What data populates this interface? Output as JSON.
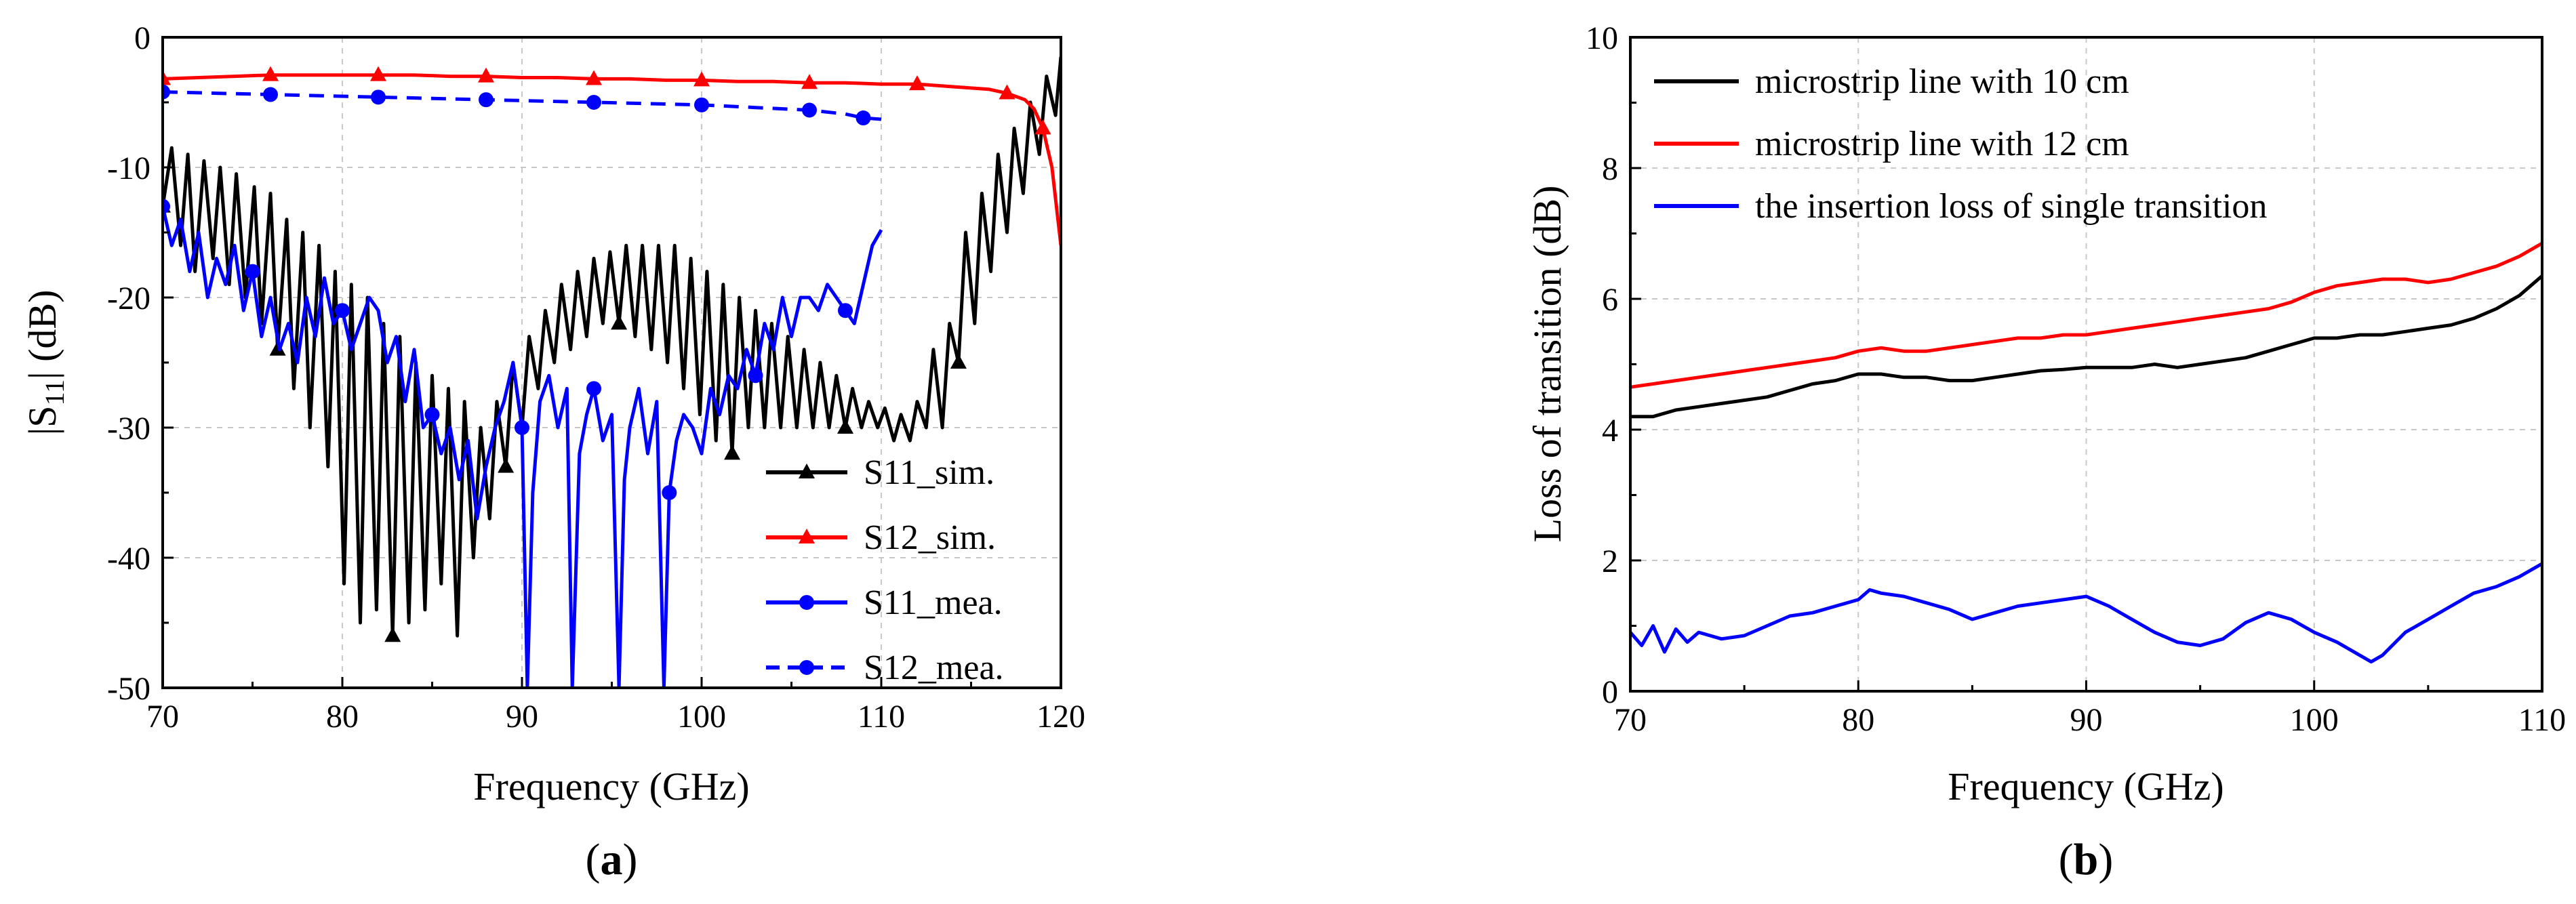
{
  "chart_data": [
    {
      "type": "line",
      "panel_label": "a",
      "xlabel": "Frequency (GHz)",
      "ylabel": "|S11| (dB)",
      "ylabel_main": "|S",
      "ylabel_sub": "11",
      "ylabel_rest": "| (dB)",
      "xlim": [
        70,
        120
      ],
      "ylim": [
        -50,
        0
      ],
      "xticks": [
        70,
        80,
        90,
        100,
        110,
        120
      ],
      "yticks": [
        0,
        -10,
        -20,
        -30,
        -40,
        -50
      ],
      "xtick_labels": [
        "70",
        "80",
        "90",
        "100",
        "110",
        "120"
      ],
      "ytick_labels": [
        "0",
        "-10",
        "-20",
        "-30",
        "-40",
        "-50"
      ],
      "grid": true,
      "legend_position": "bottom-right",
      "series": [
        {
          "name": "S11_sim.",
          "color": "#000000",
          "dash": "solid",
          "marker": "triangle",
          "x": [
            70,
            70.5,
            71,
            71.4,
            71.8,
            72.3,
            72.8,
            73.2,
            73.7,
            74.1,
            74.6,
            75.1,
            75.5,
            76.0,
            76.4,
            76.9,
            77.3,
            77.8,
            78.2,
            78.7,
            79.2,
            79.6,
            80.1,
            80.5,
            81.0,
            81.4,
            81.9,
            82.3,
            82.8,
            83.2,
            83.7,
            84.1,
            84.6,
            85.0,
            85.5,
            85.9,
            86.4,
            86.8,
            87.3,
            87.7,
            88.2,
            88.6,
            89.1,
            89.5,
            90.0,
            90.4,
            90.9,
            91.3,
            91.8,
            92.2,
            92.7,
            93.1,
            93.6,
            94.0,
            94.5,
            94.9,
            95.4,
            95.8,
            96.3,
            96.7,
            97.2,
            97.6,
            98.1,
            98.5,
            99.0,
            99.4,
            99.9,
            100.3,
            100.8,
            101.2,
            101.7,
            102.1,
            102.6,
            103.0,
            103.5,
            103.9,
            104.4,
            104.8,
            105.3,
            105.7,
            106.2,
            106.6,
            107.1,
            107.5,
            108.0,
            108.4,
            108.9,
            109.3,
            109.8,
            110.2,
            110.7,
            111.1,
            111.6,
            112.0,
            112.5,
            112.9,
            113.4,
            113.8,
            114.3,
            114.7,
            115.2,
            115.6,
            116.1,
            116.5,
            117.0,
            117.4,
            117.9,
            118.3,
            118.8,
            119.2,
            119.7,
            120
          ],
          "y": [
            -13,
            -8.5,
            -16,
            -9,
            -18,
            -9.5,
            -17,
            -10,
            -19,
            -10.5,
            -20,
            -11.5,
            -22,
            -12,
            -24,
            -14,
            -27,
            -15,
            -30,
            -16,
            -33,
            -18,
            -42,
            -19,
            -45,
            -20,
            -44,
            -22,
            -46,
            -23,
            -45,
            -25,
            -44,
            -26,
            -42,
            -27,
            -46,
            -28,
            -40,
            -30,
            -37,
            -28,
            -33,
            -25,
            -30,
            -23,
            -27,
            -21,
            -25,
            -19,
            -24,
            -18,
            -23,
            -17,
            -22,
            -16.5,
            -22,
            -16,
            -23,
            -16,
            -24,
            -16,
            -25,
            -16,
            -27,
            -17,
            -29,
            -18,
            -31,
            -19,
            -32,
            -20,
            -30,
            -21,
            -30,
            -22,
            -30,
            -23,
            -30,
            -24,
            -30,
            -25,
            -30,
            -26,
            -30,
            -27,
            -30,
            -28,
            -30,
            -28.5,
            -31,
            -29,
            -31,
            -28,
            -30,
            -24,
            -30,
            -22,
            -25,
            -15,
            -22,
            -12,
            -18,
            -9,
            -15,
            -7,
            -12,
            -5,
            -9,
            -3,
            -6,
            -1.5
          ]
        },
        {
          "name": "S12_sim.",
          "color": "#ff0000",
          "dash": "solid",
          "marker": "triangle",
          "x": [
            70,
            72,
            74,
            76,
            78,
            80,
            82,
            84,
            86,
            88,
            90,
            92,
            94,
            96,
            98,
            100,
            102,
            104,
            106,
            108,
            110,
            112,
            114,
            116,
            117,
            118,
            118.5,
            119,
            119.5,
            120
          ],
          "y": [
            -3.2,
            -3.1,
            -3.0,
            -2.9,
            -2.9,
            -2.9,
            -2.9,
            -2.9,
            -3.0,
            -3.0,
            -3.1,
            -3.1,
            -3.2,
            -3.2,
            -3.3,
            -3.3,
            -3.4,
            -3.4,
            -3.5,
            -3.5,
            -3.6,
            -3.6,
            -3.8,
            -4.0,
            -4.3,
            -4.8,
            -5.5,
            -7,
            -10,
            -16
          ]
        },
        {
          "name": "S11_mea.",
          "color": "#0000ff",
          "dash": "solid",
          "marker": "circle",
          "x": [
            70,
            70.5,
            71,
            71.5,
            72,
            72.5,
            73,
            73.5,
            74,
            74.5,
            75,
            75.5,
            76,
            76.5,
            77,
            77.5,
            78,
            78.5,
            79,
            79.5,
            80,
            80.5,
            81,
            81.5,
            82,
            82.5,
            83,
            83.5,
            84,
            84.5,
            85,
            85.5,
            86,
            86.5,
            87,
            87.5,
            88,
            88.5,
            89,
            89.5,
            90,
            90.3,
            90.6,
            91,
            91.5,
            92,
            92.5,
            92.8,
            93.2,
            93.6,
            94,
            94.5,
            95,
            95.4,
            95.7,
            96,
            96.5,
            97,
            97.5,
            97.9,
            98.2,
            98.6,
            99,
            99.5,
            100,
            100.5,
            101,
            101.5,
            102,
            102.5,
            103,
            103.5,
            104,
            104.5,
            105,
            105.5,
            106,
            106.5,
            107,
            107.5,
            108,
            108.5,
            109,
            109.5,
            110
          ],
          "y": [
            -13,
            -16,
            -14,
            -18,
            -15,
            -20,
            -17,
            -19,
            -16,
            -21,
            -18,
            -23,
            -20,
            -24,
            -22,
            -25,
            -20,
            -23,
            -18.5,
            -22,
            -21,
            -24,
            -22,
            -20,
            -21,
            -25,
            -23,
            -28,
            -24,
            -30,
            -29,
            -32,
            -30,
            -34,
            -31,
            -37,
            -33,
            -30,
            -28,
            -25,
            -30,
            -50,
            -35,
            -28,
            -26,
            -30,
            -27,
            -50,
            -32,
            -29,
            -27,
            -31,
            -29,
            -50,
            -34,
            -30,
            -27,
            -32,
            -28,
            -50,
            -35,
            -31,
            -29,
            -30,
            -32,
            -27,
            -29,
            -26,
            -27,
            -24,
            -26,
            -22,
            -24,
            -20,
            -23,
            -20,
            -20,
            -21,
            -19,
            -20,
            -21,
            -22,
            -19,
            -16,
            -14.8
          ]
        },
        {
          "name": "S12_mea.",
          "color": "#0000ff",
          "dash": "dashed",
          "marker": "circle",
          "x": [
            70,
            73,
            76,
            79,
            82,
            85,
            88,
            91,
            94,
            97,
            100,
            103,
            106,
            108,
            109,
            110
          ],
          "y": [
            -4.2,
            -4.3,
            -4.4,
            -4.5,
            -4.6,
            -4.7,
            -4.8,
            -4.9,
            -5.0,
            -5.1,
            -5.2,
            -5.4,
            -5.6,
            -5.9,
            -6.2,
            -6.3
          ]
        }
      ]
    },
    {
      "type": "line",
      "panel_label": "b",
      "xlabel": "Frequency (GHz)",
      "ylabel": "Loss of transition (dB)",
      "xlim": [
        70,
        110
      ],
      "ylim": [
        0,
        10
      ],
      "xticks": [
        70,
        80,
        90,
        100,
        110
      ],
      "yticks": [
        0,
        2,
        4,
        6,
        8,
        10
      ],
      "xtick_labels": [
        "70",
        "80",
        "90",
        "100",
        "110"
      ],
      "ytick_labels": [
        "0",
        "2",
        "4",
        "6",
        "8",
        "10"
      ],
      "grid": true,
      "legend_position": "top-left",
      "series": [
        {
          "name": "microstrip line with 10 cm",
          "color": "#000000",
          "x": [
            70,
            71,
            72,
            73,
            74,
            75,
            76,
            77,
            78,
            79,
            80,
            81,
            82,
            83,
            84,
            85,
            86,
            87,
            88,
            89,
            90,
            91,
            92,
            93,
            94,
            95,
            96,
            97,
            98,
            99,
            100,
            101,
            102,
            103,
            104,
            105,
            106,
            107,
            108,
            109,
            110
          ],
          "y": [
            4.2,
            4.2,
            4.3,
            4.35,
            4.4,
            4.45,
            4.5,
            4.6,
            4.7,
            4.75,
            4.85,
            4.85,
            4.8,
            4.8,
            4.75,
            4.75,
            4.8,
            4.85,
            4.9,
            4.92,
            4.95,
            4.95,
            4.95,
            5.0,
            4.95,
            5.0,
            5.05,
            5.1,
            5.2,
            5.3,
            5.4,
            5.4,
            5.45,
            5.45,
            5.5,
            5.55,
            5.6,
            5.7,
            5.85,
            6.05,
            6.35
          ]
        },
        {
          "name": "microstrip line with 12 cm",
          "color": "#ff0000",
          "x": [
            70,
            71,
            72,
            73,
            74,
            75,
            76,
            77,
            78,
            79,
            80,
            81,
            82,
            83,
            84,
            85,
            86,
            87,
            88,
            89,
            90,
            91,
            92,
            93,
            94,
            95,
            96,
            97,
            98,
            99,
            100,
            101,
            102,
            103,
            104,
            105,
            106,
            107,
            108,
            109,
            110
          ],
          "y": [
            4.65,
            4.7,
            4.75,
            4.8,
            4.85,
            4.9,
            4.95,
            5.0,
            5.05,
            5.1,
            5.2,
            5.25,
            5.2,
            5.2,
            5.25,
            5.3,
            5.35,
            5.4,
            5.4,
            5.45,
            5.45,
            5.5,
            5.55,
            5.6,
            5.65,
            5.7,
            5.75,
            5.8,
            5.85,
            5.95,
            6.1,
            6.2,
            6.25,
            6.3,
            6.3,
            6.25,
            6.3,
            6.4,
            6.5,
            6.65,
            6.85
          ]
        },
        {
          "name": "the insertion loss of single transition",
          "color": "#0000ff",
          "x": [
            70,
            70.5,
            71,
            71.5,
            72,
            72.5,
            73,
            74,
            75,
            76,
            77,
            78,
            79,
            80,
            80.5,
            81,
            82,
            83,
            84,
            85,
            86,
            87,
            88,
            89,
            90,
            91,
            92,
            93,
            94,
            95,
            96,
            97,
            98,
            99,
            100,
            101,
            102,
            102.5,
            103,
            104,
            105,
            106,
            107,
            108,
            109,
            110
          ],
          "y": [
            0.9,
            0.7,
            1.0,
            0.6,
            0.95,
            0.75,
            0.9,
            0.8,
            0.85,
            1.0,
            1.15,
            1.2,
            1.3,
            1.4,
            1.55,
            1.5,
            1.45,
            1.35,
            1.25,
            1.1,
            1.2,
            1.3,
            1.35,
            1.4,
            1.45,
            1.3,
            1.1,
            0.9,
            0.75,
            0.7,
            0.8,
            1.05,
            1.2,
            1.1,
            0.9,
            0.75,
            0.55,
            0.45,
            0.55,
            0.9,
            1.1,
            1.3,
            1.5,
            1.6,
            1.75,
            1.95
          ]
        }
      ]
    }
  ]
}
